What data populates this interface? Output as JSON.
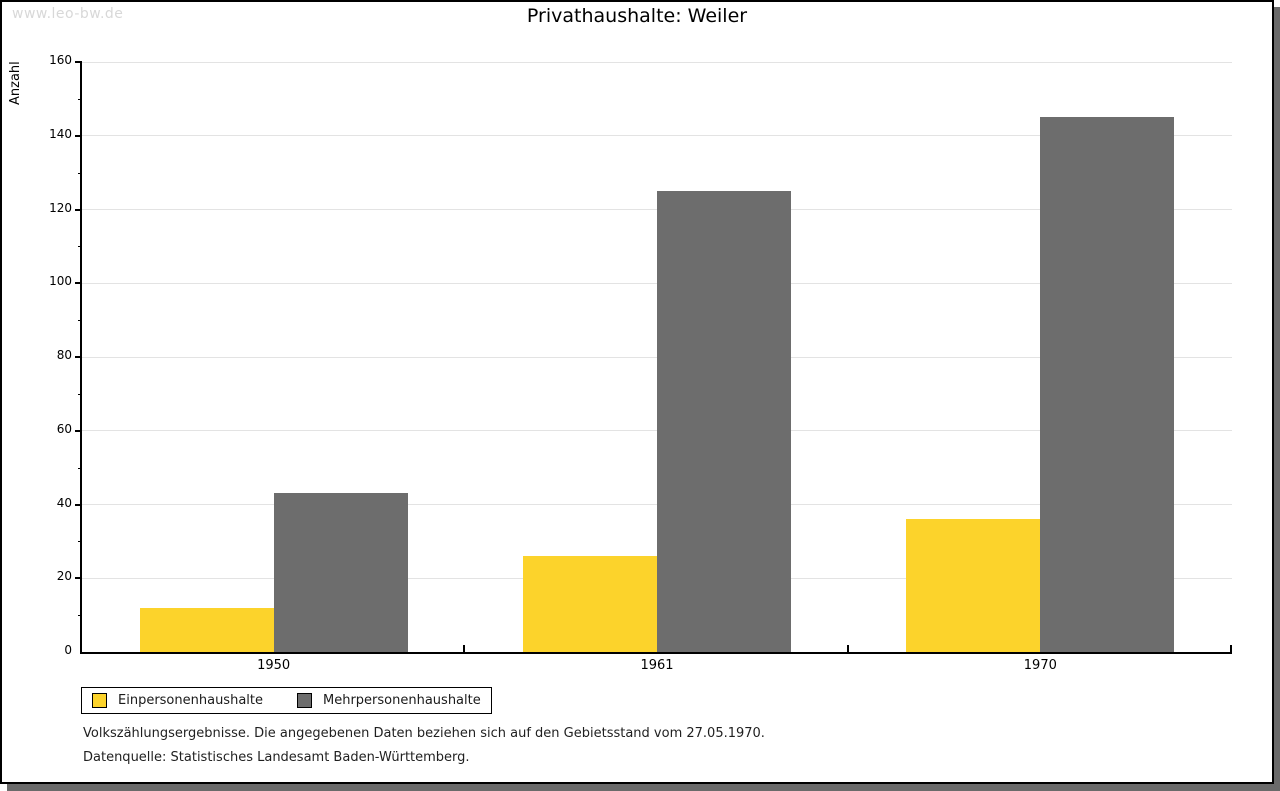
{
  "watermark": "www.leo-bw.de",
  "title": "Privathaushalte: Weiler",
  "chart_data": {
    "type": "bar",
    "title": "Privathaushalte: Weiler",
    "xlabel": "",
    "ylabel": "Anzahl",
    "categories": [
      "1950",
      "1961",
      "1970"
    ],
    "series": [
      {
        "name": "Einpersonenhaushalte",
        "color": "#fcd32b",
        "values": [
          12,
          26,
          36
        ]
      },
      {
        "name": "Mehrpersonenhaushalte",
        "color": "#6d6d6d",
        "values": [
          43,
          125,
          145
        ]
      }
    ],
    "ylim": [
      0,
      160
    ],
    "ytick_step": 20,
    "minor_tick_step": 10,
    "grid": true,
    "legend_position": "bottom-left"
  },
  "footnotes": {
    "line1": "Volkszählungsergebnisse. Die angegebenen Daten beziehen sich auf den Gebietsstand vom 27.05.1970.",
    "line2": "Datenquelle: Statistisches Landesamt Baden-Württemberg."
  }
}
